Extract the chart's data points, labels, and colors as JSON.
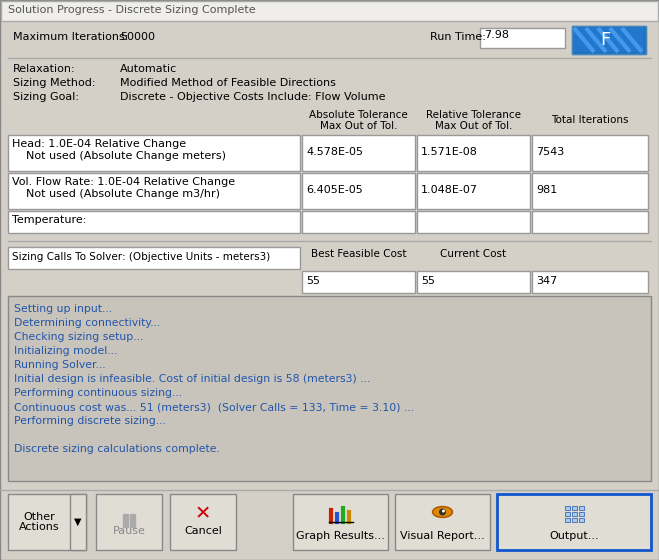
{
  "title": "Solution Progress - Discrete Sizing Complete",
  "bg_color": "#d4d0c8",
  "title_bg": "#f0eeea",
  "white": "#ffffff",
  "input_bg": "#ffffff",
  "log_bg": "#c8c4bc",
  "btn_bg": "#e0ddd5",
  "dark_border": "#808080",
  "light_border": "#ffffff",
  "text_color": "#000000",
  "blue_text": "#2255aa",
  "max_iterations_label": "Maximum Iterations:",
  "max_iterations_value": "50000",
  "runtime_label": "Run Time:",
  "runtime_value": "7.98",
  "relaxation_label": "Relaxation:",
  "relaxation_value": "Automatic",
  "sizing_method_label": "Sizing Method:",
  "sizing_method_value": "Modified Method of Feasible Directions",
  "sizing_goal_label": "Sizing Goal:",
  "sizing_goal_value": "Discrete - Objective Costs Include: Flow Volume",
  "col_abs_tol_1": "Absolute Tolerance",
  "col_abs_tol_2": "Max Out of Tol.",
  "col_rel_tol_1": "Relative Tolerance",
  "col_rel_tol_2": "Max Out of Tol.",
  "col_total_iter": "Total Iterations",
  "row1_label_1": "Head: 1.0E-04 Relative Change",
  "row1_label_2": "    Not used (Absolute Change meters)",
  "row1_abs": "4.578E-05",
  "row1_rel": "1.571E-08",
  "row1_iter": "7543",
  "row2_label_1": "Vol. Flow Rate: 1.0E-04 Relative Change",
  "row2_label_2": "    Not used (Absolute Change m3/hr)",
  "row2_abs": "6.405E-05",
  "row2_rel": "1.048E-07",
  "row2_iter": "981",
  "row3_label": "Temperature:",
  "sizing_calls_label": "Sizing Calls To Solver: (Objective Units - meters3)",
  "col_best_cost": "Best Feasible Cost",
  "col_current_cost": "Current Cost",
  "best_cost_val": "55",
  "current_cost_val": "55",
  "solver_calls_val": "347",
  "log_lines": [
    "Setting up input...",
    "Determining connectivity...",
    "Checking sizing setup...",
    "Initializing model...",
    "Running Solver...",
    "Initial design is infeasible. Cost of initial design is 58 (meters3) ...",
    "Performing continuous sizing...",
    "Continuous cost was... 51 (meters3)  (Solver Calls = 133, Time = 3.10) ...",
    "Performing discrete sizing...",
    "",
    "Discrete sizing calculations complete."
  ],
  "btn_other_1": "Other",
  "btn_other_2": "Actions",
  "btn_pause": "Pause",
  "btn_cancel": "Cancel",
  "btn_graph": "Graph Results...",
  "btn_visual": "Visual Report...",
  "btn_output": "Output...",
  "output_btn_border": "#1155cc",
  "pause_color": "#aaaaaa",
  "cancel_x_color": "#cc0000"
}
